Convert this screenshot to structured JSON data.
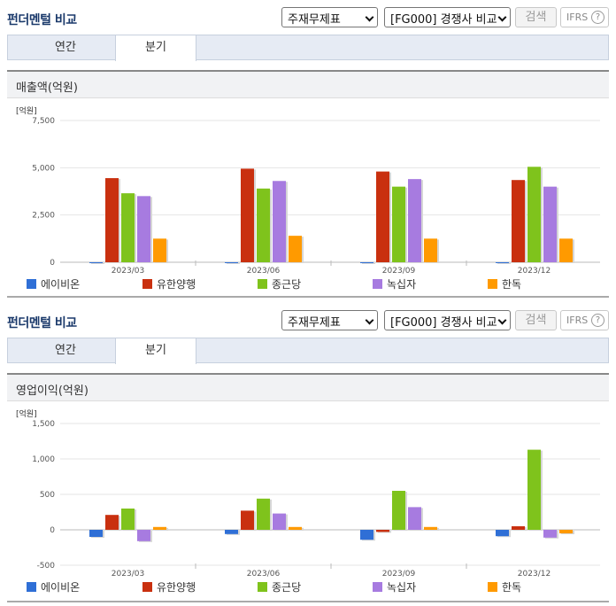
{
  "panels": [
    {
      "title": "펀더멘털 비교",
      "select_a": "주재무제표",
      "select_b": "[FG000] 경쟁사 비교",
      "search_label": "검색",
      "ifrs_label": "IFRS",
      "help_glyph": "?",
      "tabs": [
        "연간",
        "분기"
      ],
      "active_tab": "분기",
      "section_title": "매출액(억원)",
      "unit": "[억원]"
    },
    {
      "title": "펀더멘털 비교",
      "select_a": "주재무제표",
      "select_b": "[FG000] 경쟁사 비교",
      "search_label": "검색",
      "ifrs_label": "IFRS",
      "help_glyph": "?",
      "tabs": [
        "연간",
        "분기"
      ],
      "active_tab": "분기",
      "section_title": "영업이익(억원)",
      "unit": "[억원]"
    }
  ],
  "colors": {
    "에이비온": "#2f6fd6",
    "유한양행": "#c9300f",
    "종근당": "#7fc31c",
    "녹십자": "#a77be0",
    "한독": "#ff9a00",
    "grid": "#e4e4e4",
    "axis": "#bbbbbb"
  },
  "chart_data": [
    {
      "type": "bar",
      "categories": [
        "2023/03",
        "2023/06",
        "2023/09",
        "2023/12"
      ],
      "ylim": [
        0,
        7500
      ],
      "yticks": [
        0,
        2500,
        5000,
        7500
      ],
      "ytick_labels": [
        "0",
        "2,500",
        "5,000",
        "7,500"
      ],
      "series": [
        {
          "name": "에이비온",
          "values": [
            1,
            1,
            1,
            1
          ]
        },
        {
          "name": "유한양행",
          "values": [
            4450,
            4950,
            4800,
            4350
          ]
        },
        {
          "name": "종근당",
          "values": [
            3650,
            3900,
            4000,
            5050
          ]
        },
        {
          "name": "녹십자",
          "values": [
            3500,
            4300,
            4400,
            4000
          ]
        },
        {
          "name": "한독",
          "values": [
            1250,
            1400,
            1250,
            1250
          ]
        }
      ]
    },
    {
      "type": "bar",
      "categories": [
        "2023/03",
        "2023/06",
        "2023/09",
        "2023/12"
      ],
      "ylim": [
        -500,
        1500
      ],
      "yticks": [
        -500,
        0,
        500,
        1000,
        1500
      ],
      "ytick_labels": [
        "-500",
        "0",
        "500",
        "1,000",
        "1,500"
      ],
      "series": [
        {
          "name": "에이비온",
          "values": [
            -100,
            -60,
            -140,
            -90
          ]
        },
        {
          "name": "유한양행",
          "values": [
            210,
            270,
            -30,
            50
          ]
        },
        {
          "name": "종근당",
          "values": [
            300,
            440,
            550,
            1130
          ]
        },
        {
          "name": "녹십자",
          "values": [
            -160,
            230,
            320,
            -110
          ]
        },
        {
          "name": "한독",
          "values": [
            40,
            40,
            40,
            -50
          ]
        }
      ]
    }
  ]
}
